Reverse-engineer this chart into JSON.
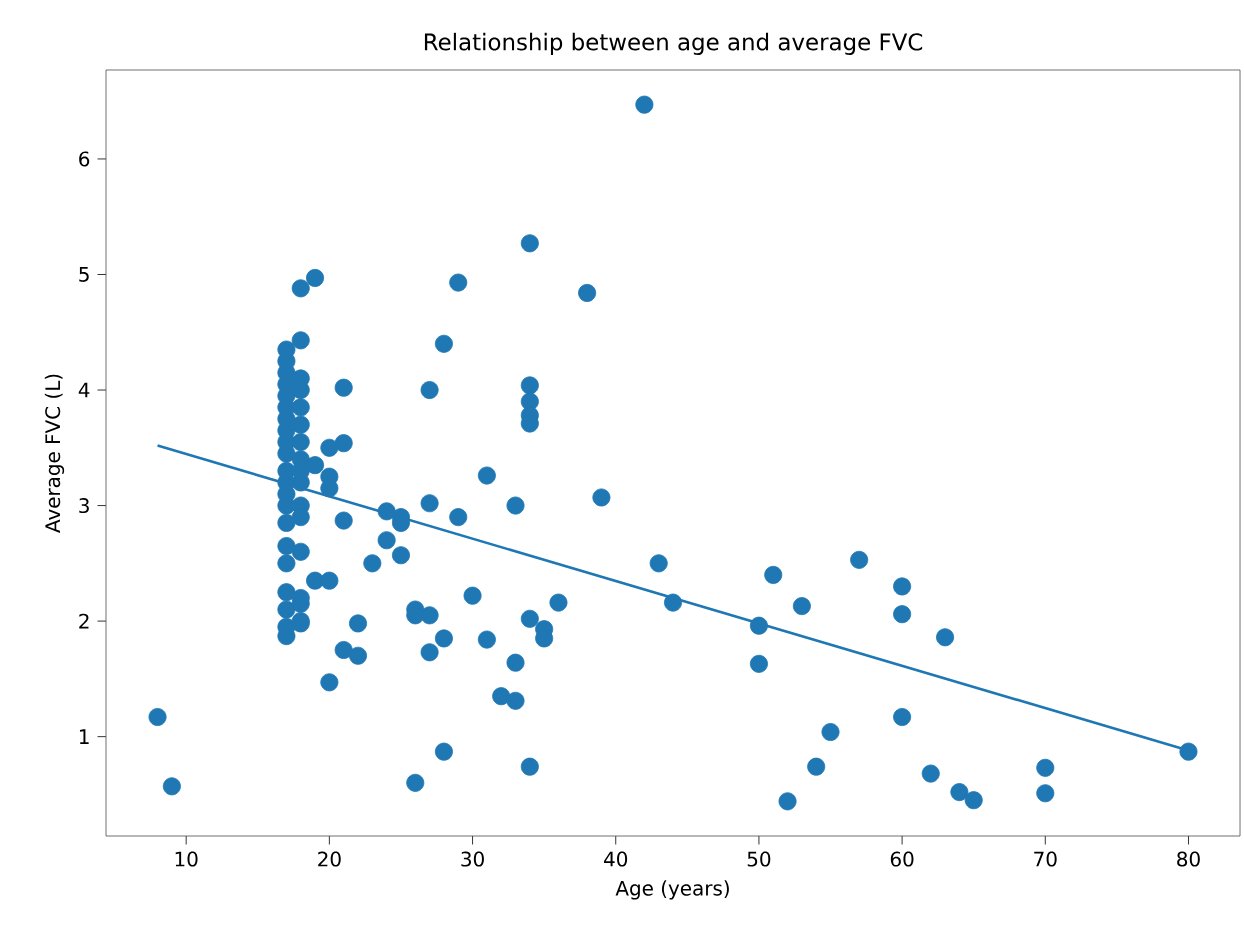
{
  "chart_data": {
    "type": "scatter",
    "title": "Relationship between age and average FVC",
    "xlabel": "Age (years)",
    "ylabel": "Average FVC (L)",
    "xlim": [
      4.4,
      83.6
    ],
    "ylim": [
      0.14,
      6.77
    ],
    "xticks": [
      10,
      20,
      30,
      40,
      50,
      60,
      70,
      80
    ],
    "yticks": [
      1,
      2,
      3,
      4,
      5,
      6
    ],
    "grid": false,
    "series": [
      {
        "marker": "circle",
        "color": "#1f77b4",
        "x": [
          8,
          9,
          17,
          17,
          17,
          17,
          17,
          17,
          17,
          17,
          17,
          17,
          17,
          17,
          17,
          17,
          17,
          17,
          17,
          17,
          17,
          17,
          17,
          18,
          18,
          18,
          18,
          18,
          18,
          18,
          18,
          18,
          18,
          18,
          18,
          18,
          18,
          18,
          18,
          18,
          19,
          19,
          19,
          20,
          20,
          20,
          20,
          20,
          21,
          21,
          21,
          21,
          22,
          22,
          23,
          24,
          24,
          25,
          25,
          25,
          26,
          26,
          26,
          27,
          27,
          27,
          27,
          28,
          28,
          28,
          29,
          29,
          30,
          31,
          31,
          32,
          33,
          33,
          33,
          34,
          34,
          34,
          34,
          34,
          34,
          34,
          35,
          35,
          36,
          38,
          39,
          42,
          43,
          44,
          50,
          50,
          51,
          52,
          53,
          54,
          55,
          57,
          60,
          60,
          60,
          62,
          63,
          64,
          65,
          70,
          70,
          80
        ],
        "values": [
          1.17,
          0.57,
          1.87,
          1.95,
          2.1,
          2.25,
          2.5,
          2.65,
          2.85,
          3.0,
          3.1,
          3.2,
          3.3,
          3.45,
          3.55,
          3.65,
          3.75,
          3.85,
          3.95,
          4.05,
          4.15,
          4.25,
          4.35,
          4.43,
          4.88,
          3.0,
          3.2,
          3.4,
          3.55,
          3.7,
          3.85,
          4.0,
          4.1,
          2.0,
          2.15,
          2.6,
          2.9,
          3.3,
          1.98,
          2.2,
          4.97,
          2.35,
          3.35,
          3.5,
          3.25,
          1.47,
          2.35,
          3.15,
          4.02,
          3.54,
          2.87,
          1.75,
          1.98,
          1.7,
          2.5,
          2.95,
          2.7,
          2.85,
          2.9,
          2.57,
          2.1,
          0.6,
          2.05,
          4.0,
          3.02,
          1.73,
          2.05,
          4.4,
          1.85,
          0.87,
          4.93,
          2.9,
          2.22,
          3.26,
          1.84,
          1.35,
          3.0,
          1.64,
          1.31,
          5.27,
          4.04,
          3.9,
          3.78,
          3.71,
          2.02,
          0.74,
          1.93,
          1.85,
          2.16,
          4.84,
          3.07,
          6.47,
          2.5,
          2.16,
          1.96,
          1.63,
          2.4,
          0.44,
          2.13,
          0.74,
          1.04,
          2.53,
          2.3,
          2.06,
          1.17,
          0.68,
          1.86,
          0.52,
          0.45,
          0.73,
          0.51,
          0.87
        ]
      },
      {
        "type": "line",
        "marker": "none",
        "color": "#1f77b4",
        "x": [
          8,
          80
        ],
        "values": [
          3.52,
          0.88
        ]
      }
    ]
  }
}
